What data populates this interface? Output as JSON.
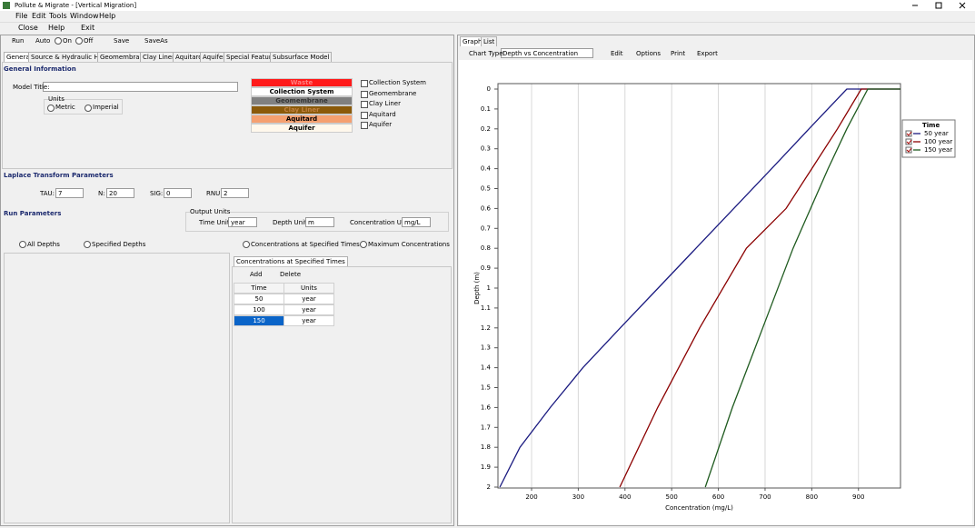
{
  "window": {
    "title": "Pollute & Migrate - [Vertical Migration]"
  },
  "menu": [
    "File",
    "Edit",
    "Tools",
    "Window",
    "Help"
  ],
  "toolbar": [
    "Close",
    "Help",
    "Exit"
  ],
  "run_bar": {
    "run": "Run",
    "auto": "Auto",
    "on": "On",
    "off": "Off",
    "save": "Save",
    "save_as": "SaveAs"
  },
  "tabs": [
    "General",
    "Source & Hydraulic Heads",
    "Geomembranes",
    "Clay Liners",
    "Aquitard",
    "Aquifer",
    "Special Features",
    "Subsurface Model"
  ],
  "general": {
    "heading": "General Information",
    "model_title_label": "Model Title:",
    "units_label": "Units",
    "metric": "Metric",
    "imperial": "Imperial",
    "layers": [
      "Waste",
      "Collection System",
      "Geomembrane",
      "Clay Liner",
      "Aquitard",
      "Aquifer"
    ],
    "checks": [
      "Collection System",
      "Geomembrane",
      "Clay Liner",
      "Aquitard",
      "Aquifer"
    ]
  },
  "laplace": {
    "heading": "Laplace Transform Parameters",
    "fields": [
      {
        "label": "TAU:",
        "value": 7
      },
      {
        "label": "N:",
        "value": 20
      },
      {
        "label": "SIG:",
        "value": 0
      },
      {
        "label": "RNU:",
        "value": 2
      }
    ]
  },
  "run": {
    "heading": "Run Parameters",
    "output_units": "Output Units",
    "fields": [
      {
        "label": "Time Units:",
        "value": "year"
      },
      {
        "label": "Depth Units:",
        "value": "m"
      },
      {
        "label": "Concentration Units:",
        "value": "mg/L"
      }
    ],
    "depth_options": [
      "All Depths",
      "Specified Depths"
    ],
    "conc_options": [
      "Concentrations at Specified Times",
      "Maximum Concentrations"
    ],
    "subtab": "Concentrations at Specified Times",
    "add": "Add",
    "delete": "Delete"
  },
  "table": {
    "columns": [
      "Time",
      "Units"
    ],
    "rows": [
      [
        50,
        "year"
      ],
      [
        100,
        "year"
      ],
      [
        150,
        "year"
      ]
    ]
  },
  "graph_panel": {
    "tabs": [
      "Graph",
      "List"
    ],
    "chart_type_label": "Chart Type:",
    "chart_type": "Depth vs Concentration",
    "buttons": [
      "Edit",
      "Options",
      "Print",
      "Export"
    ]
  },
  "chart_data": {
    "type": "line",
    "x_label": "Concentration (mg/L)",
    "y_label": "Depth (m)",
    "legend_title": "Time",
    "legend": "right",
    "xlim": [
      128,
      990
    ],
    "xticks": [
      200,
      300,
      400,
      500,
      600,
      700,
      800,
      900
    ],
    "ylim": [
      0,
      2
    ],
    "y_inverted": true,
    "yticks": [
      0,
      0.1,
      0.2,
      0.3,
      0.4,
      0.5,
      0.6,
      0.7,
      0.8,
      0.9,
      1,
      1.1,
      1.2,
      1.3,
      1.4,
      1.5,
      1.6,
      1.7,
      1.8,
      1.9,
      2
    ],
    "grid_x": true,
    "series": [
      {
        "name": "50 year",
        "color": "#1a1a80",
        "x": [
          132,
          175,
          240,
          310,
          390,
          471,
          552,
          633,
          714,
          794,
          875,
          990
        ],
        "values": [
          2,
          1.8,
          1.6,
          1.4,
          1.2,
          1,
          0.8,
          0.6,
          0.4,
          0.2,
          0,
          0
        ]
      },
      {
        "name": "100 year",
        "color": "#8b0000",
        "x": [
          389,
          470,
          560,
          660,
          745,
          800,
          855,
          906,
          990
        ],
        "values": [
          2,
          1.6,
          1.2,
          0.8,
          0.6,
          0.4,
          0.2,
          0,
          0
        ]
      },
      {
        "name": "150 year",
        "color": "#1e5a1e",
        "x": [
          572,
          630,
          695,
          760,
          835,
          875,
          920,
          990
        ],
        "values": [
          2,
          1.6,
          1.2,
          0.8,
          0.4,
          0.2,
          0,
          0
        ]
      }
    ]
  }
}
